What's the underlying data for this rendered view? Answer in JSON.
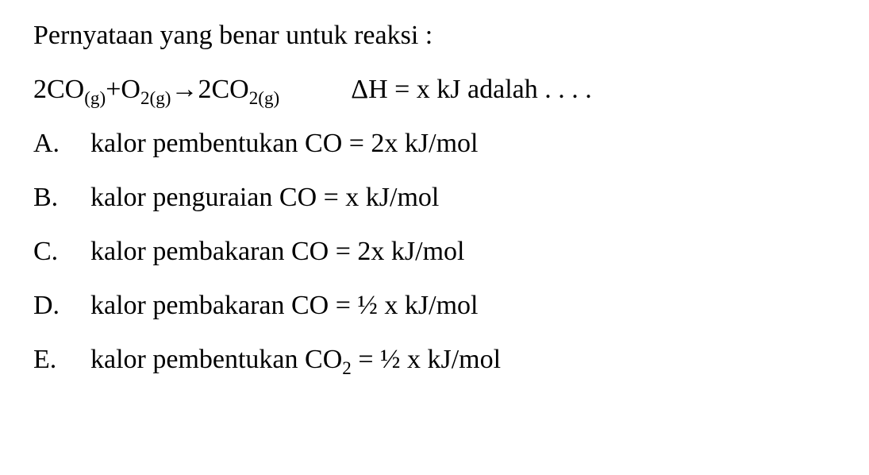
{
  "font": {
    "family": "Times New Roman",
    "size_pt": 26,
    "weight": 500,
    "color": "#000000"
  },
  "background_color": "#ffffff",
  "question": {
    "prompt_text": "Pernyataan yang benar untuk reaksi :",
    "equation": {
      "lhs_coef1": "2",
      "lhs_species1": "CO",
      "lhs_phase1": "(g)",
      "plus": "+",
      "lhs_species2": "O",
      "lhs_sub2": "2(g)",
      "arrow": "→",
      "rhs_coef": "2",
      "rhs_species": "CO",
      "rhs_sub": "2(g)",
      "deltaH_label": "ΔH = x kJ adalah . . . ."
    }
  },
  "options": [
    {
      "letter": "A.",
      "text_pre": "kalor pembentukan CO = 2x kJ/mol"
    },
    {
      "letter": "B.",
      "text_pre": "kalor penguraian  CO = x kJ/mol"
    },
    {
      "letter": "C.",
      "text_pre": "kalor pembakaran CO = 2x kJ/mol"
    },
    {
      "letter": "D.",
      "text_pre": "kalor pembakaran CO = ½ x kJ/mol"
    },
    {
      "letter": "E.",
      "text_pre": "kalor pembentukan CO",
      "sub": "2",
      "text_post": " = ½ x kJ/mol"
    }
  ]
}
